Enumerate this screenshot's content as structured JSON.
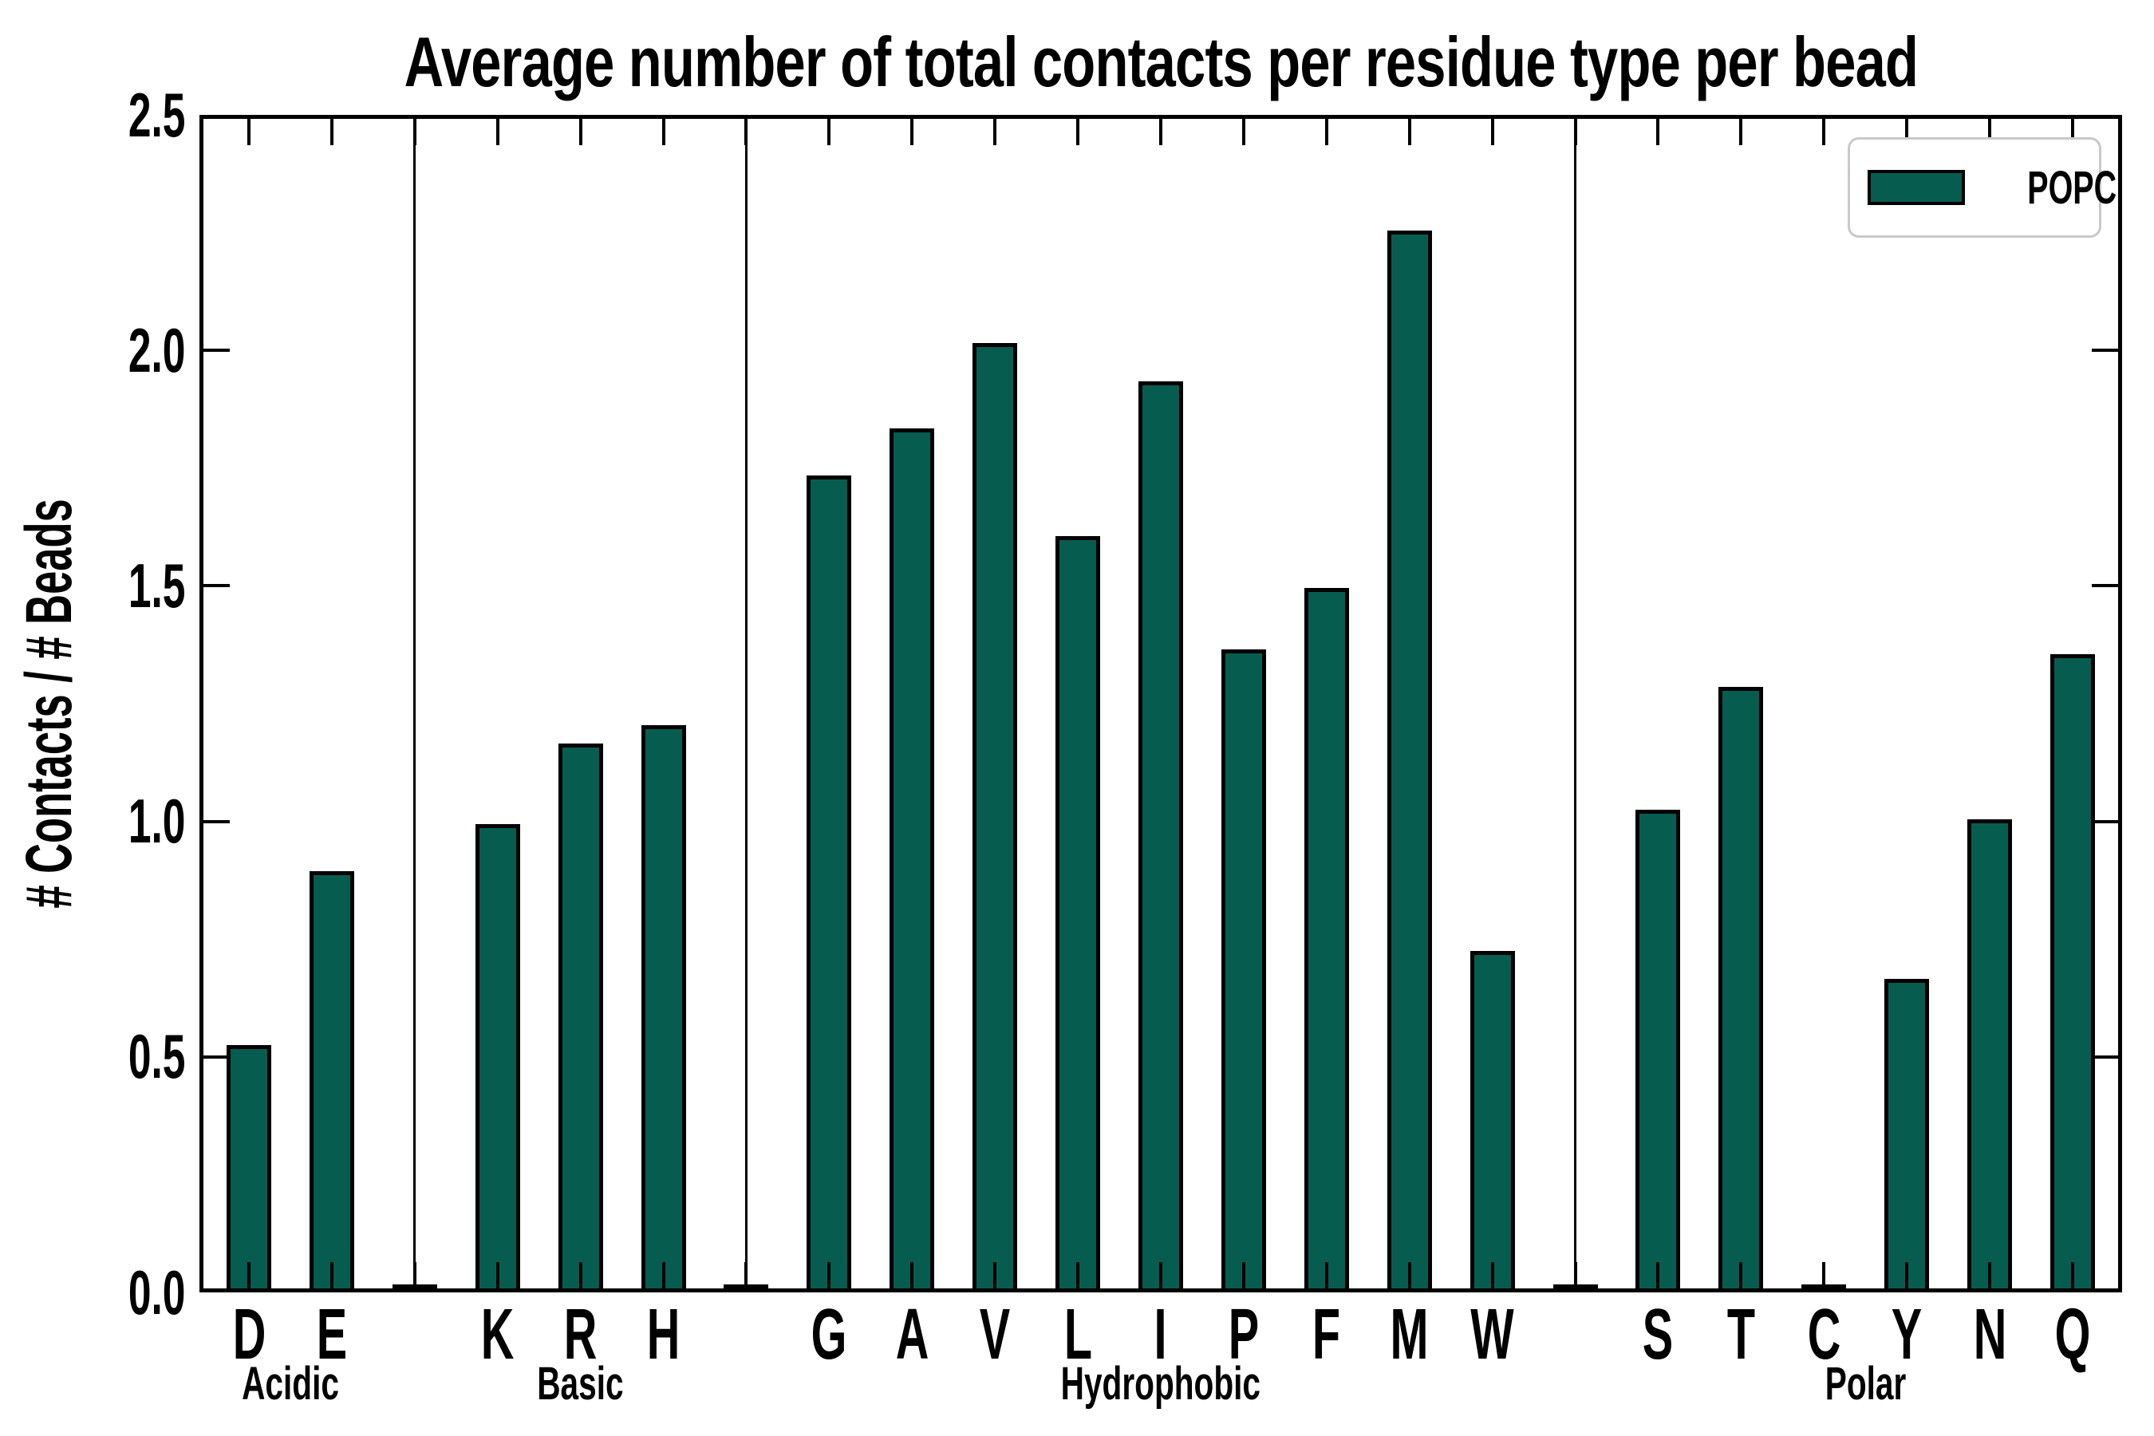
{
  "chart_title": "Average number of total contacts per residue type per bead",
  "y_axis": {
    "label": "# Contacts / # Beads",
    "tick_labels": [
      "0.0",
      "0.5",
      "1.0",
      "1.5",
      "2.0",
      "2.5"
    ]
  },
  "legend": {
    "label": "POPC"
  },
  "colors": {
    "bar_fill": "#075C50",
    "bar_edge": "#000000",
    "axis": "#000000",
    "legend_border": "#C9C9C9",
    "background": "#FFFFFF"
  },
  "chart_data": {
    "type": "bar",
    "title": "Average number of total contacts per residue type per bead",
    "ylabel": "# Contacts / # Beads",
    "ylim": [
      0,
      2.5
    ],
    "yticks": [
      0.0,
      0.5,
      1.0,
      1.5,
      2.0,
      2.5
    ],
    "grid": false,
    "legend_position": "upper right",
    "series_name": "POPC",
    "groups": [
      {
        "label": "Acidic",
        "categories": [
          "D",
          "E"
        ],
        "values": [
          0.52,
          0.89
        ]
      },
      {
        "label": "Basic",
        "categories": [
          "K",
          "R",
          "H"
        ],
        "values": [
          0.99,
          1.16,
          1.2
        ]
      },
      {
        "label": "Hydrophobic",
        "categories": [
          "G",
          "A",
          "V",
          "L",
          "I",
          "P",
          "F",
          "M",
          "W"
        ],
        "values": [
          1.73,
          1.83,
          2.01,
          1.6,
          1.93,
          1.36,
          1.49,
          2.25,
          0.72
        ]
      },
      {
        "label": "Polar",
        "categories": [
          "S",
          "T",
          "C",
          "Y",
          "N",
          "Q"
        ],
        "values": [
          1.02,
          1.28,
          0.01,
          0.66,
          1.0,
          1.35
        ]
      }
    ],
    "group_spacer_value": 0.01
  }
}
